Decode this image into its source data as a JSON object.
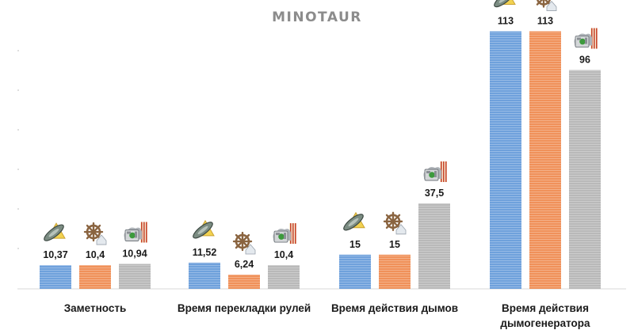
{
  "chart_data": {
    "type": "bar",
    "title": "MINOTAUR",
    "categories": [
      [
        "Заметность"
      ],
      [
        "Время перекладки рулей"
      ],
      [
        "Время действия дымов"
      ],
      [
        "Время действия",
        "дымогенератора"
      ]
    ],
    "series": [
      {
        "values": [
          10.37,
          11.52,
          15,
          113
        ],
        "labels": [
          "10,37",
          "11,52",
          "15",
          "113"
        ],
        "color": "#6fa1dc",
        "icon": "skill-tier1-icon"
      },
      {
        "values": [
          10.4,
          6.24,
          15,
          113
        ],
        "labels": [
          "10,4",
          "6,24",
          "15",
          "113"
        ],
        "color": "#f0915a",
        "icon": "helm-wheel-icon"
      },
      {
        "values": [
          10.94,
          10.4,
          37.5,
          96
        ],
        "labels": [
          "10,94",
          "10,4",
          "37,5",
          "96"
        ],
        "color": "#b9b9b9",
        "icon": "smoke-generator-icon"
      }
    ],
    "ylim": [
      0,
      125
    ],
    "grid": false,
    "legend": "none"
  }
}
